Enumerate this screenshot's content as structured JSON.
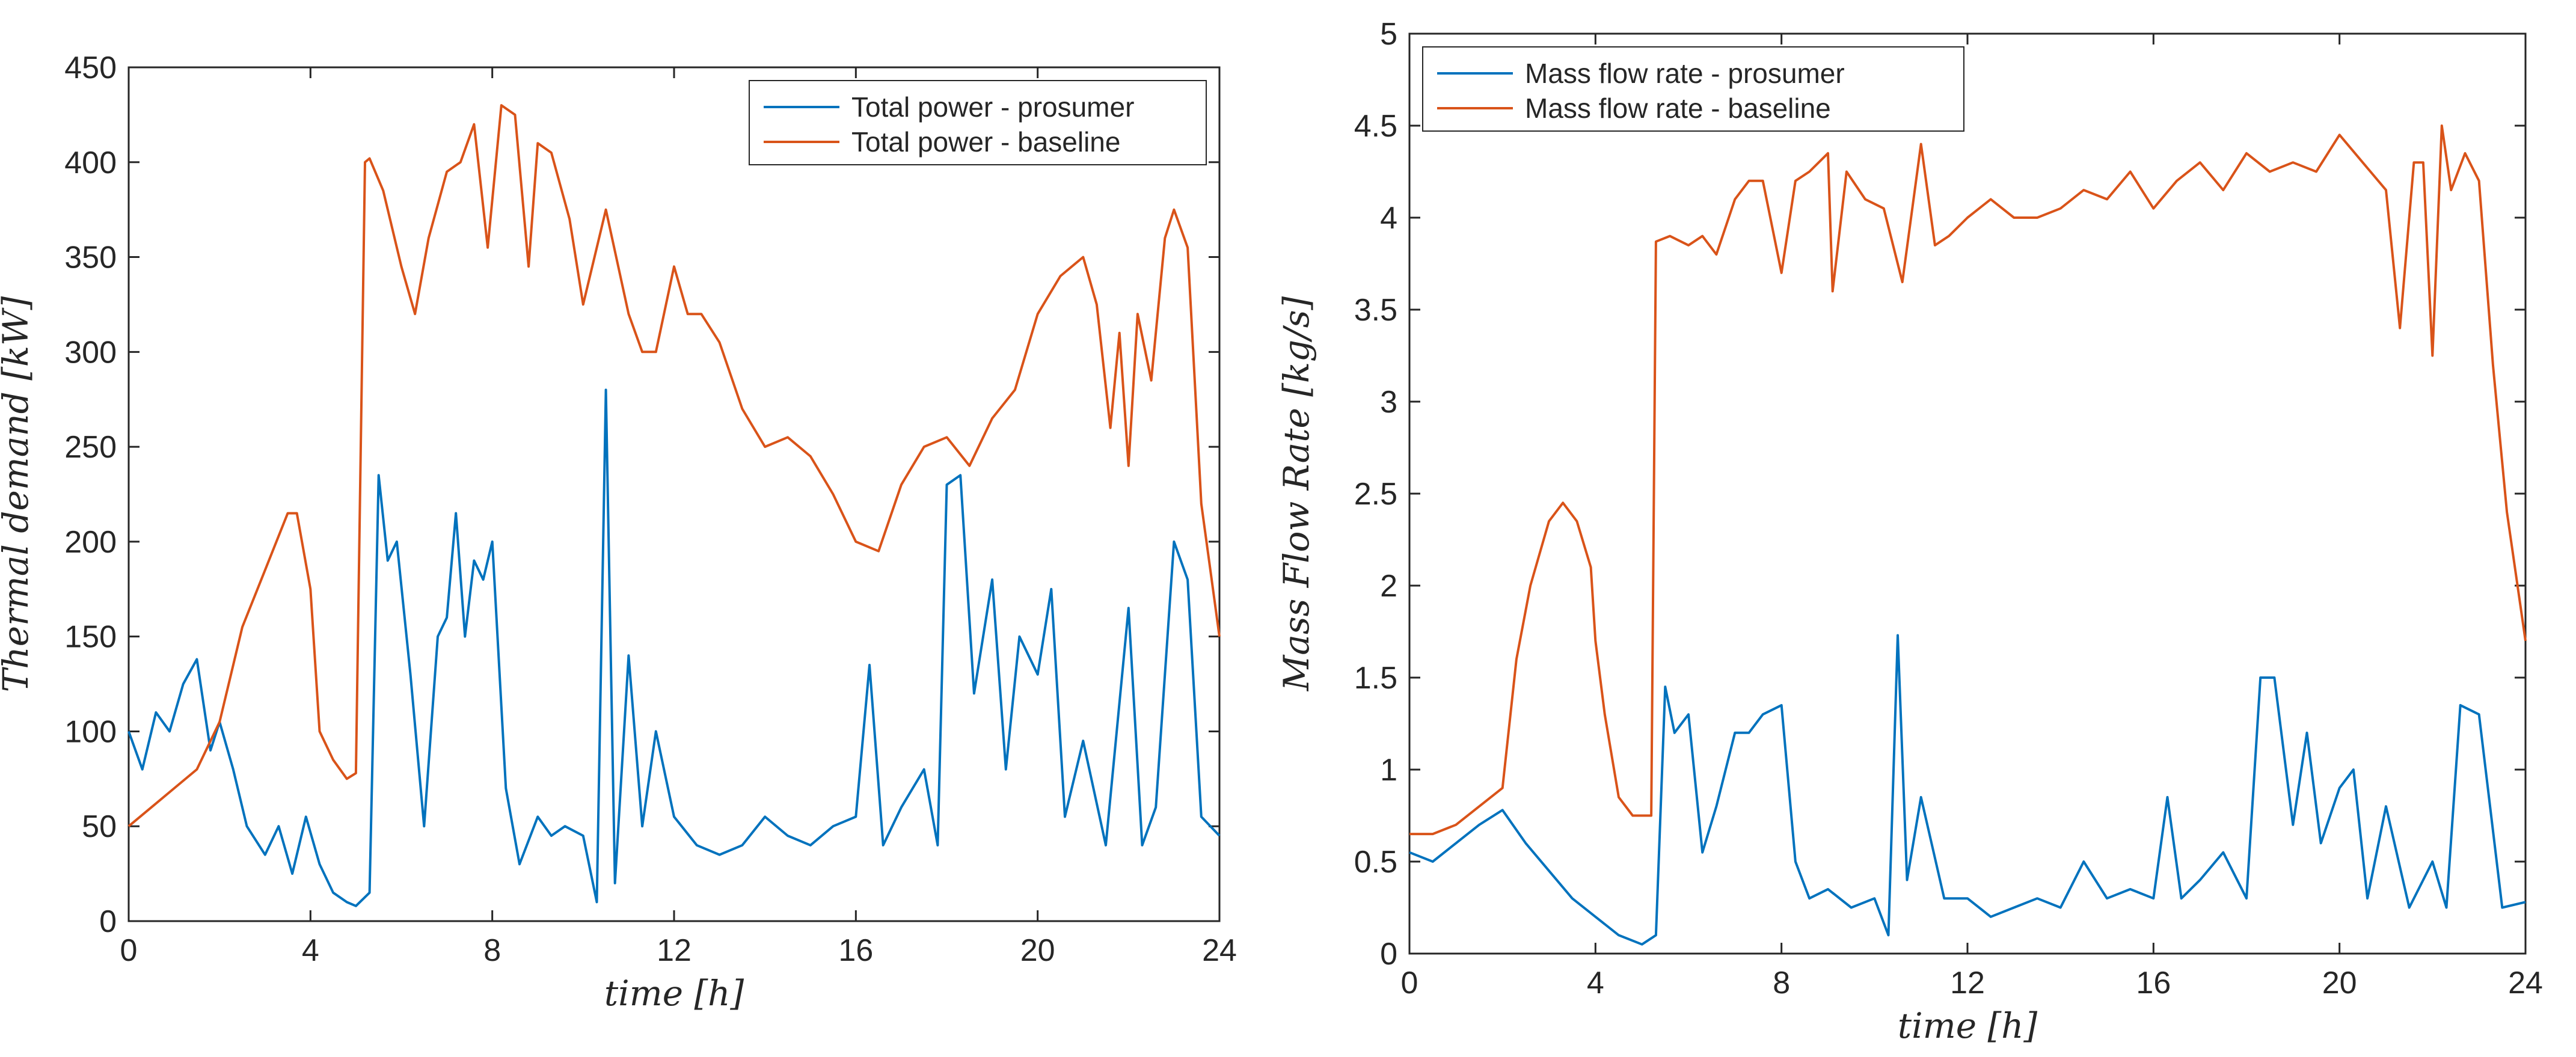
{
  "chart_data": [
    {
      "type": "line",
      "xlabel": "time [h]",
      "ylabel": "Thermal demand [kW]",
      "xlim": [
        0,
        24
      ],
      "ylim": [
        0,
        450
      ],
      "xticks": [
        0,
        4,
        8,
        12,
        16,
        20,
        24
      ],
      "yticks": [
        0,
        50,
        100,
        150,
        200,
        250,
        300,
        350,
        400,
        450
      ],
      "legend_position": "top-right",
      "series": [
        {
          "name": "Total power - prosumer",
          "color": "#0072BD",
          "x": [
            0,
            0.3,
            0.6,
            0.9,
            1.2,
            1.5,
            1.8,
            2.0,
            2.3,
            2.6,
            3.0,
            3.3,
            3.6,
            3.9,
            4.2,
            4.5,
            4.8,
            5.0,
            5.3,
            5.5,
            5.7,
            5.9,
            6.2,
            6.5,
            6.8,
            7.0,
            7.2,
            7.4,
            7.6,
            7.8,
            8.0,
            8.3,
            8.6,
            9.0,
            9.3,
            9.6,
            10.0,
            10.3,
            10.5,
            10.7,
            11.0,
            11.3,
            11.6,
            12.0,
            12.5,
            13.0,
            13.5,
            14.0,
            14.5,
            15.0,
            15.5,
            16.0,
            16.3,
            16.6,
            17.0,
            17.5,
            17.8,
            18.0,
            18.3,
            18.6,
            19.0,
            19.3,
            19.6,
            20.0,
            20.3,
            20.6,
            21.0,
            21.5,
            22.0,
            22.3,
            22.6,
            23.0,
            23.3,
            23.6,
            24.0
          ],
          "y": [
            100,
            80,
            110,
            100,
            125,
            138,
            90,
            105,
            80,
            50,
            35,
            50,
            25,
            55,
            30,
            15,
            10,
            8,
            15,
            235,
            190,
            200,
            130,
            50,
            150,
            160,
            215,
            150,
            190,
            180,
            200,
            70,
            30,
            55,
            45,
            50,
            45,
            10,
            280,
            20,
            140,
            50,
            100,
            55,
            40,
            35,
            40,
            55,
            45,
            40,
            50,
            55,
            135,
            40,
            60,
            80,
            40,
            230,
            235,
            120,
            180,
            80,
            150,
            130,
            175,
            55,
            95,
            40,
            165,
            40,
            60,
            200,
            180,
            55,
            45
          ]
        },
        {
          "name": "Total power - baseline",
          "color": "#D95319",
          "x": [
            0,
            0.5,
            1.0,
            1.5,
            2.0,
            2.5,
            3.0,
            3.5,
            3.7,
            4.0,
            4.2,
            4.5,
            4.8,
            5.0,
            5.2,
            5.3,
            5.6,
            6.0,
            6.3,
            6.6,
            7.0,
            7.3,
            7.6,
            7.9,
            8.2,
            8.5,
            8.8,
            9.0,
            9.3,
            9.7,
            10.0,
            10.5,
            11.0,
            11.3,
            11.6,
            12.0,
            12.3,
            12.6,
            13.0,
            13.5,
            14.0,
            14.5,
            15.0,
            15.5,
            16.0,
            16.5,
            17.0,
            17.5,
            18.0,
            18.5,
            19.0,
            19.5,
            20.0,
            20.5,
            21.0,
            21.3,
            21.6,
            21.8,
            22.0,
            22.2,
            22.5,
            22.8,
            23.0,
            23.3,
            23.6,
            24.0
          ],
          "y": [
            50,
            60,
            70,
            80,
            105,
            155,
            185,
            215,
            215,
            175,
            100,
            85,
            75,
            78,
            400,
            402,
            385,
            345,
            320,
            360,
            395,
            400,
            420,
            355,
            430,
            425,
            345,
            410,
            405,
            370,
            325,
            375,
            320,
            300,
            300,
            345,
            320,
            320,
            305,
            270,
            250,
            255,
            245,
            225,
            200,
            195,
            230,
            250,
            255,
            240,
            265,
            280,
            320,
            340,
            350,
            325,
            260,
            310,
            240,
            320,
            285,
            360,
            375,
            355,
            220,
            150
          ]
        }
      ]
    },
    {
      "type": "line",
      "xlabel": "time [h]",
      "ylabel": "Mass Flow Rate [kg/s]",
      "xlim": [
        0,
        24
      ],
      "ylim": [
        0,
        5
      ],
      "xticks": [
        0,
        4,
        8,
        12,
        16,
        20,
        24
      ],
      "yticks": [
        0,
        0.5,
        1,
        1.5,
        2,
        2.5,
        3,
        3.5,
        4,
        4.5,
        5
      ],
      "legend_position": "top-left",
      "series": [
        {
          "name": "Mass flow rate - prosumer",
          "color": "#0072BD",
          "x": [
            0,
            0.5,
            1.0,
            1.5,
            2.0,
            2.5,
            3.0,
            3.5,
            4.0,
            4.5,
            5.0,
            5.3,
            5.5,
            5.7,
            6.0,
            6.3,
            6.6,
            7.0,
            7.3,
            7.6,
            8.0,
            8.3,
            8.6,
            9.0,
            9.5,
            10.0,
            10.3,
            10.5,
            10.7,
            11.0,
            11.5,
            12.0,
            12.5,
            13.0,
            13.5,
            14.0,
            14.5,
            15.0,
            15.5,
            16.0,
            16.3,
            16.6,
            17.0,
            17.5,
            18.0,
            18.3,
            18.6,
            19.0,
            19.3,
            19.6,
            20.0,
            20.3,
            20.6,
            21.0,
            21.5,
            22.0,
            22.3,
            22.6,
            23.0,
            23.5,
            24.0
          ],
          "y": [
            0.55,
            0.5,
            0.6,
            0.7,
            0.78,
            0.6,
            0.45,
            0.3,
            0.2,
            0.1,
            0.05,
            0.1,
            1.45,
            1.2,
            1.3,
            0.55,
            0.8,
            1.2,
            1.2,
            1.3,
            1.35,
            0.5,
            0.3,
            0.35,
            0.25,
            0.3,
            0.1,
            1.73,
            0.4,
            0.85,
            0.3,
            0.3,
            0.2,
            0.25,
            0.3,
            0.25,
            0.5,
            0.3,
            0.35,
            0.3,
            0.85,
            0.3,
            0.4,
            0.55,
            0.3,
            1.5,
            1.5,
            0.7,
            1.2,
            0.6,
            0.9,
            1.0,
            0.3,
            0.8,
            0.25,
            0.5,
            0.25,
            1.35,
            1.3,
            0.25,
            0.28
          ]
        },
        {
          "name": "Mass flow rate - baseline",
          "color": "#D95319",
          "x": [
            0,
            0.5,
            1.0,
            1.5,
            2.0,
            2.3,
            2.6,
            3.0,
            3.3,
            3.6,
            3.9,
            4.0,
            4.2,
            4.5,
            4.8,
            5.0,
            5.2,
            5.3,
            5.6,
            6.0,
            6.3,
            6.6,
            7.0,
            7.3,
            7.6,
            8.0,
            8.3,
            8.6,
            9.0,
            9.1,
            9.4,
            9.8,
            10.2,
            10.6,
            11.0,
            11.3,
            11.6,
            12.0,
            12.5,
            13.0,
            13.5,
            14.0,
            14.5,
            15.0,
            15.5,
            16.0,
            16.5,
            17.0,
            17.5,
            18.0,
            18.5,
            19.0,
            19.5,
            20.0,
            20.5,
            21.0,
            21.3,
            21.6,
            21.8,
            22.0,
            22.2,
            22.4,
            22.7,
            23.0,
            23.3,
            23.6,
            24.0
          ],
          "y": [
            0.65,
            0.65,
            0.7,
            0.8,
            0.9,
            1.6,
            2.0,
            2.35,
            2.45,
            2.35,
            2.1,
            1.7,
            1.3,
            0.85,
            0.75,
            0.75,
            0.75,
            3.87,
            3.9,
            3.85,
            3.9,
            3.8,
            4.1,
            4.2,
            4.2,
            3.7,
            4.2,
            4.25,
            4.35,
            3.6,
            4.25,
            4.1,
            4.05,
            3.65,
            4.4,
            3.85,
            3.9,
            4.0,
            4.1,
            4.0,
            4.0,
            4.05,
            4.15,
            4.1,
            4.25,
            4.05,
            4.2,
            4.3,
            4.15,
            4.35,
            4.25,
            4.3,
            4.25,
            4.45,
            4.3,
            4.15,
            3.4,
            4.3,
            4.3,
            3.25,
            4.5,
            4.15,
            4.35,
            4.2,
            3.2,
            2.4,
            1.7
          ]
        }
      ]
    }
  ]
}
